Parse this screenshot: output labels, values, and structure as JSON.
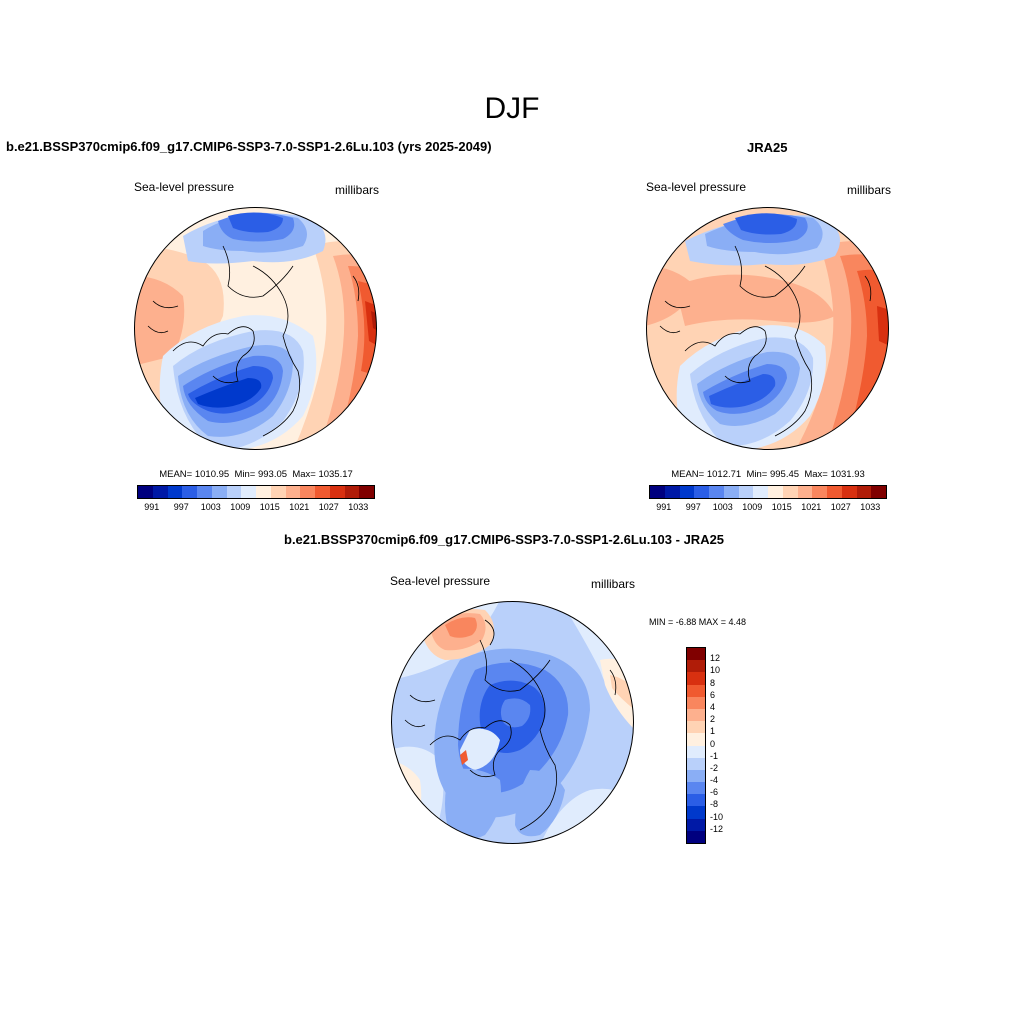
{
  "page": {
    "title": "DJF"
  },
  "panels": {
    "model": {
      "title": "b.e21.BSSP370cmip6.f09_g17.CMIP6-SSP3-7.0-SSP1-2.6Lu.103 (yrs 2025-2049)",
      "variable": "Sea-level pressure",
      "units": "millibars",
      "mean_label": "MEAN= 1010.95",
      "min_label": "Min= 993.05",
      "max_label": "Max= 1035.17",
      "colorbar_ticks": [
        "991",
        "997",
        "1003",
        "1009",
        "1015",
        "1021",
        "1027",
        "1033"
      ]
    },
    "obs": {
      "title": "JRA25",
      "variable": "Sea-level pressure",
      "units": "millibars",
      "mean_label": "MEAN= 1012.71",
      "min_label": "Min= 995.45",
      "max_label": "Max= 1031.93",
      "colorbar_ticks": [
        "991",
        "997",
        "1003",
        "1009",
        "1015",
        "1021",
        "1027",
        "1033"
      ]
    },
    "diff": {
      "title": "b.e21.BSSP370cmip6.f09_g17.CMIP6-SSP3-7.0-SSP1-2.6Lu.103 - JRA25",
      "variable": "Sea-level pressure",
      "units": "millibars",
      "minmax_label": "MIN =  -6.88 MAX =   4.48",
      "colorbar_ticks": [
        "12",
        "10",
        "8",
        "6",
        "4",
        "2",
        "1",
        "0",
        "-1",
        "-2",
        "-4",
        "-6",
        "-8",
        "-10",
        "-12"
      ]
    }
  },
  "colors": {
    "abs_scale": [
      "#00007f",
      "#0019a6",
      "#0039cc",
      "#2b5ee6",
      "#5a86f0",
      "#8aaef5",
      "#b9d0fa",
      "#e0ecfd",
      "#fff0e0",
      "#ffd3b4",
      "#fdb08e",
      "#f9865e",
      "#f05a30",
      "#d83010",
      "#b01c08",
      "#800000"
    ],
    "diff_scale": [
      "#800000",
      "#b01c08",
      "#d83010",
      "#f05a30",
      "#f9865e",
      "#fdb08e",
      "#ffd3b4",
      "#fff0e0",
      "#e0ecfd",
      "#b9d0fa",
      "#8aaef5",
      "#5a86f0",
      "#2b5ee6",
      "#0039cc",
      "#0019a6",
      "#00007f"
    ]
  }
}
